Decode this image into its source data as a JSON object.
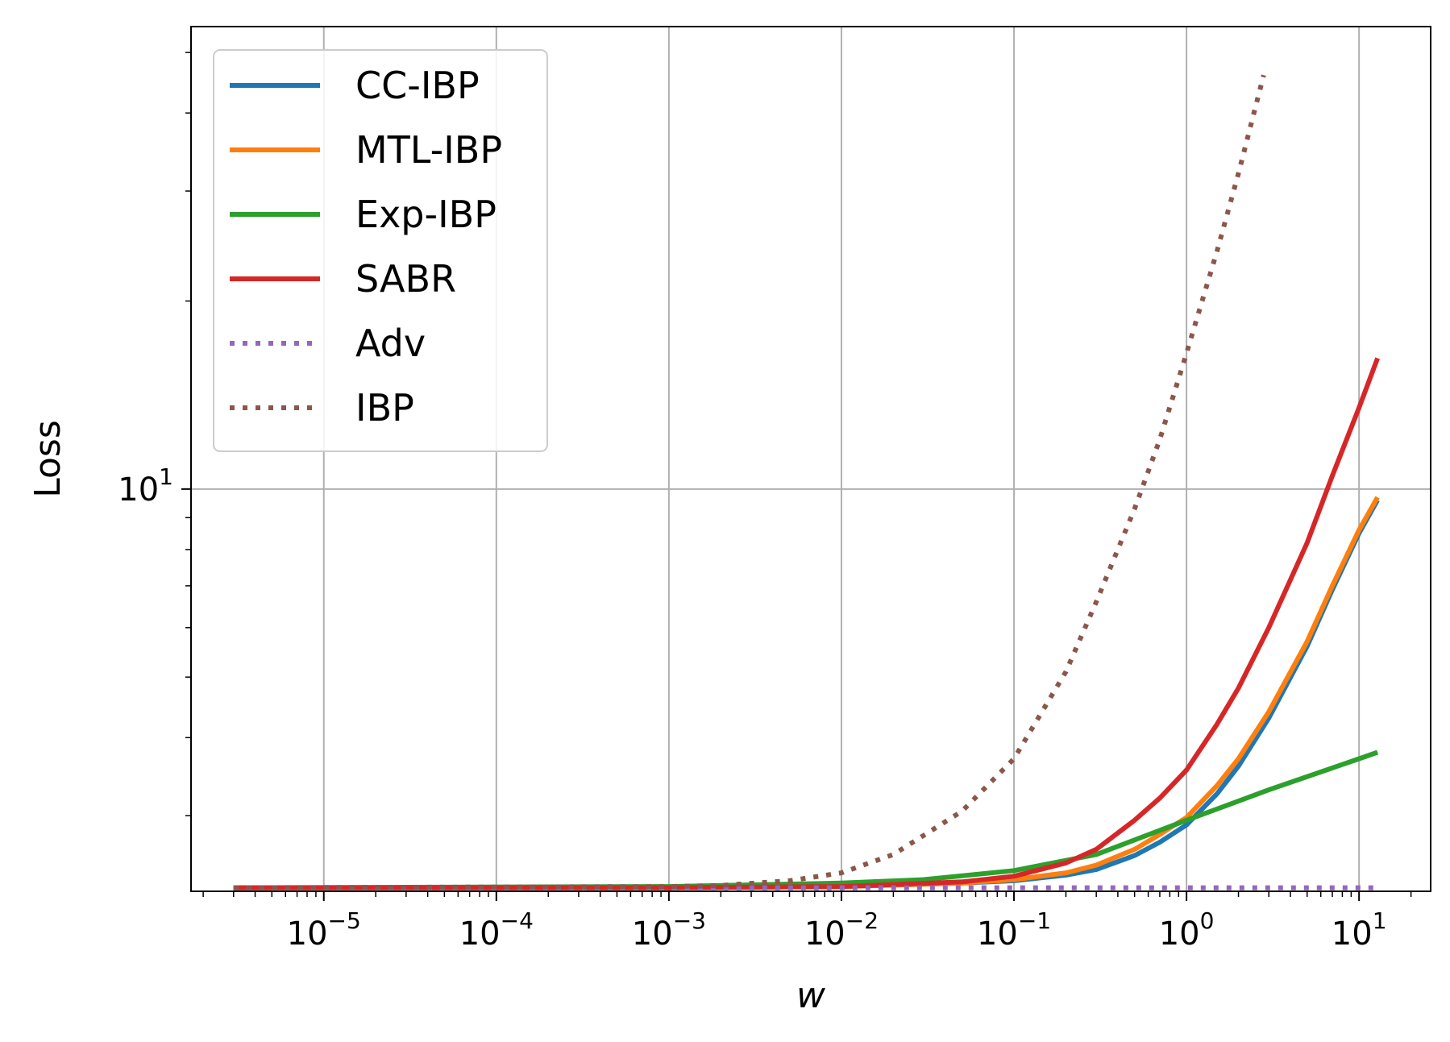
{
  "chart_data": {
    "type": "line",
    "title": "",
    "xlabel": "w",
    "ylabel": "Loss",
    "xscale": "log",
    "yscale": "log",
    "xlim": [
      1.7e-06,
      26
    ],
    "ylim": [
      2.27,
      55
    ],
    "grid": true,
    "legend_position": "top-left",
    "x_ticks": [
      {
        "value": 1e-05,
        "base": "10",
        "exp": "−5"
      },
      {
        "value": 0.0001,
        "base": "10",
        "exp": "−4"
      },
      {
        "value": 0.001,
        "base": "10",
        "exp": "−3"
      },
      {
        "value": 0.01,
        "base": "10",
        "exp": "−2"
      },
      {
        "value": 0.1,
        "base": "10",
        "exp": "−1"
      },
      {
        "value": 1,
        "base": "10",
        "exp": "0"
      },
      {
        "value": 10,
        "base": "10",
        "exp": "1"
      }
    ],
    "y_ticks": [
      {
        "value": 10,
        "base": "10",
        "exp": "1"
      }
    ],
    "series": [
      {
        "name": "CC-IBP",
        "color": "#1f77b4",
        "style": "solid",
        "points": [
          [
            3e-06,
            2.3
          ],
          [
            0.001,
            2.3
          ],
          [
            0.01,
            2.31
          ],
          [
            0.05,
            2.34
          ],
          [
            0.1,
            2.36
          ],
          [
            0.2,
            2.41
          ],
          [
            0.3,
            2.46
          ],
          [
            0.5,
            2.59
          ],
          [
            0.7,
            2.72
          ],
          [
            1,
            2.9
          ],
          [
            1.5,
            3.25
          ],
          [
            2,
            3.6
          ],
          [
            3,
            4.3
          ],
          [
            5,
            5.6
          ],
          [
            7,
            6.9
          ],
          [
            10,
            8.5
          ],
          [
            12.8,
            9.6
          ]
        ]
      },
      {
        "name": "MTL-IBP",
        "color": "#ff7f0e",
        "style": "solid",
        "points": [
          [
            3e-06,
            2.3
          ],
          [
            0.001,
            2.3
          ],
          [
            0.01,
            2.31
          ],
          [
            0.05,
            2.34
          ],
          [
            0.1,
            2.37
          ],
          [
            0.2,
            2.43
          ],
          [
            0.3,
            2.5
          ],
          [
            0.5,
            2.65
          ],
          [
            0.7,
            2.8
          ],
          [
            1,
            2.98
          ],
          [
            1.5,
            3.35
          ],
          [
            2,
            3.7
          ],
          [
            3,
            4.4
          ],
          [
            5,
            5.7
          ],
          [
            7,
            7.0
          ],
          [
            10,
            8.6
          ],
          [
            12.8,
            9.7
          ]
        ]
      },
      {
        "name": "Exp-IBP",
        "color": "#2ca02c",
        "style": "solid",
        "points": [
          [
            3e-06,
            2.3
          ],
          [
            0.001,
            2.31
          ],
          [
            0.01,
            2.34
          ],
          [
            0.03,
            2.37
          ],
          [
            0.1,
            2.45
          ],
          [
            0.3,
            2.6
          ],
          [
            1,
            2.95
          ],
          [
            3,
            3.3
          ],
          [
            10,
            3.7
          ],
          [
            12.8,
            3.79
          ]
        ]
      },
      {
        "name": "SABR",
        "color": "#d62728",
        "style": "solid",
        "points": [
          [
            3e-06,
            2.3
          ],
          [
            0.001,
            2.3
          ],
          [
            0.01,
            2.31
          ],
          [
            0.05,
            2.35
          ],
          [
            0.1,
            2.4
          ],
          [
            0.2,
            2.52
          ],
          [
            0.3,
            2.65
          ],
          [
            0.5,
            2.95
          ],
          [
            0.7,
            3.2
          ],
          [
            1,
            3.55
          ],
          [
            1.5,
            4.2
          ],
          [
            2,
            4.8
          ],
          [
            3,
            6.0
          ],
          [
            5,
            8.2
          ],
          [
            7,
            10.5
          ],
          [
            10,
            13.5
          ],
          [
            12.8,
            16.2
          ]
        ]
      },
      {
        "name": "Adv",
        "color": "#9467bd",
        "style": "dotted",
        "points": [
          [
            3e-06,
            2.3
          ],
          [
            12.8,
            2.3
          ]
        ]
      },
      {
        "name": "IBP",
        "color": "#8c564b",
        "style": "dotted",
        "points": [
          [
            3e-06,
            2.3
          ],
          [
            0.001,
            2.31
          ],
          [
            0.002,
            2.32
          ],
          [
            0.005,
            2.36
          ],
          [
            0.01,
            2.43
          ],
          [
            0.02,
            2.6
          ],
          [
            0.05,
            3.05
          ],
          [
            0.1,
            3.7
          ],
          [
            0.2,
            5.1
          ],
          [
            0.3,
            6.6
          ],
          [
            0.5,
            9.3
          ],
          [
            0.7,
            12.0
          ],
          [
            1,
            16.5
          ],
          [
            1.5,
            24
          ],
          [
            2,
            32
          ],
          [
            2.8,
            46
          ]
        ]
      }
    ]
  }
}
